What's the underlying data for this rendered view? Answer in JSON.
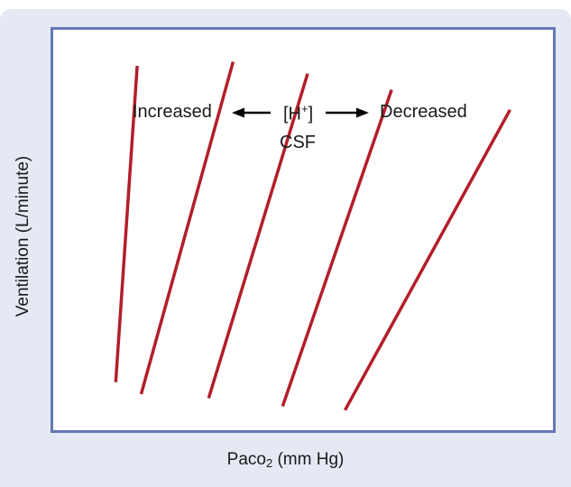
{
  "chart_data": {
    "type": "line",
    "title": "",
    "xlabel": "Paco",
    "xlabel_sub": "2",
    "xlabel_unit": " (mm Hg)",
    "ylabel": "Ventilation (L/minute)",
    "grid": false,
    "legend": "none",
    "color": "#b21e2a",
    "annotation": {
      "left_text": "Increased",
      "center_text": "[H",
      "center_sup": "+",
      "center_close": "]",
      "right_text": "Decreased",
      "below_text": "CSF"
    },
    "series": [
      {
        "x": [
          0.125,
          0.168
        ],
        "y": [
          0.12,
          0.91
        ]
      },
      {
        "x": [
          0.176,
          0.36
        ],
        "y": [
          0.09,
          0.92
        ]
      },
      {
        "x": [
          0.311,
          0.509
        ],
        "y": [
          0.08,
          0.89
        ]
      },
      {
        "x": [
          0.459,
          0.677
        ],
        "y": [
          0.06,
          0.85
        ]
      },
      {
        "x": [
          0.584,
          0.914
        ],
        "y": [
          0.05,
          0.8
        ]
      }
    ]
  }
}
